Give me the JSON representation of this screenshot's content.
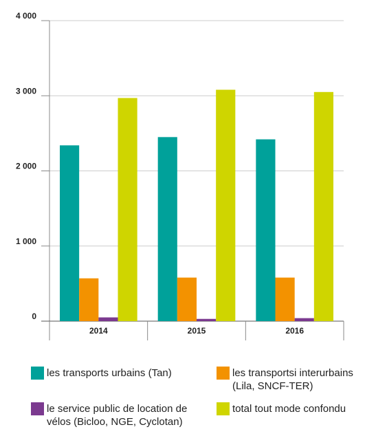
{
  "chart_data": {
    "type": "bar",
    "categories": [
      "2014",
      "2015",
      "2016"
    ],
    "series": [
      {
        "name": "les transports urbains (Tan)",
        "color": "#00a19a",
        "values": [
          2340,
          2450,
          2420
        ]
      },
      {
        "name": "les transportsi interurbains (Lila, SNCF-TER)",
        "color": "#f39200",
        "values": [
          570,
          580,
          580
        ]
      },
      {
        "name": "le service public de location de vélos (Bicloo, NGE, Cyclotan)",
        "color": "#7b3a8f",
        "values": [
          50,
          30,
          40
        ]
      },
      {
        "name": "total tout mode confondu",
        "color": "#cfd500",
        "values": [
          2970,
          3080,
          3050
        ]
      }
    ],
    "ylim": [
      0,
      4000
    ],
    "yticks": [
      0,
      {
        "value": 1000,
        "label": "1 000"
      },
      {
        "value": 2000,
        "label": "2 000"
      },
      {
        "value": 3000,
        "label": "3 000"
      },
      {
        "value": 4000,
        "label": "4 000"
      }
    ],
    "grid": true
  }
}
